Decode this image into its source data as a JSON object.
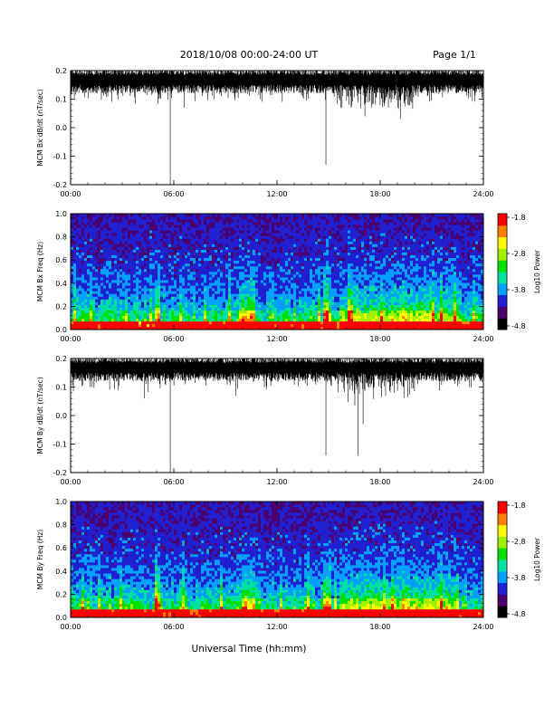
{
  "header": {
    "title": "2018/10/08   00:00-24:00 UT",
    "page": "Page 1/1"
  },
  "xlabel": "Universal Time (hh:mm)",
  "colors": {
    "trace": "#000000",
    "spectrogram_scale": [
      "#000000",
      "#4b006e",
      "#2020d0",
      "#00a0ff",
      "#00e0a0",
      "#00e000",
      "#a0f000",
      "#ffff00",
      "#ff8000",
      "#ff0000"
    ]
  },
  "chart_data": [
    {
      "type": "line",
      "ylabel": "MCM Bx dB/dt (nT/sec)",
      "xlim": [
        0,
        24
      ],
      "ylim": [
        -0.2,
        0.2
      ],
      "xtick_labels": [
        "00:00",
        "06:00",
        "12:00",
        "18:00",
        "24:00"
      ],
      "ytick_labels": [
        "0.2",
        "0.1",
        "0.0",
        "-0.1",
        "-0.2"
      ],
      "baseline": 0.17,
      "spikes": [
        {
          "x": 5.8,
          "y": -0.2
        },
        {
          "x": 14.85,
          "y": -0.13
        },
        {
          "x": 17.1,
          "y": 0.04
        },
        {
          "x": 19.2,
          "y": 0.03
        },
        {
          "x": 2.4,
          "y": 0.09
        },
        {
          "x": 6.6,
          "y": 0.07
        },
        {
          "x": 16.3,
          "y": 0.07
        }
      ],
      "grid": false
    },
    {
      "type": "heatmap",
      "ylabel": "MCM Bx Freq (Hz)",
      "xlim": [
        0,
        24
      ],
      "ylim": [
        0.0,
        1.0
      ],
      "xtick_labels": [
        "00:00",
        "06:00",
        "12:00",
        "18:00",
        "24:00"
      ],
      "ytick_labels": [
        "1.0",
        "0.8",
        "0.6",
        "0.4",
        "0.2",
        "0.0"
      ],
      "colorbar": {
        "label": "Log10 Power",
        "range": [
          -4.8,
          -1.8
        ],
        "tick_labels": [
          "-1.8",
          "-2.8",
          "-3.8",
          "-4.8"
        ]
      }
    },
    {
      "type": "line",
      "ylabel": "MCM By dB/dt (nT/sec)",
      "xlim": [
        0,
        24
      ],
      "ylim": [
        -0.2,
        0.2
      ],
      "xtick_labels": [
        "00:00",
        "06:00",
        "12:00",
        "18:00",
        "24:00"
      ],
      "ytick_labels": [
        "0.2",
        "0.1",
        "0.0",
        "-0.1",
        "-0.2"
      ],
      "baseline": 0.17,
      "spikes": [
        {
          "x": 5.8,
          "y": -0.2
        },
        {
          "x": 14.85,
          "y": -0.14
        },
        {
          "x": 16.7,
          "y": -0.14
        },
        {
          "x": 17.0,
          "y": -0.03
        },
        {
          "x": 4.3,
          "y": 0.06
        },
        {
          "x": 9.6,
          "y": 0.07
        }
      ],
      "grid": false
    },
    {
      "type": "heatmap",
      "ylabel": "MCM By Freq (Hz)",
      "xlim": [
        0,
        24
      ],
      "ylim": [
        0.0,
        1.0
      ],
      "xtick_labels": [
        "00:00",
        "06:00",
        "12:00",
        "18:00",
        "24:00"
      ],
      "ytick_labels": [
        "1.0",
        "0.8",
        "0.6",
        "0.4",
        "0.2",
        "0.0"
      ],
      "colorbar": {
        "label": "Log10 Power",
        "range": [
          -4.8,
          -1.8
        ],
        "tick_labels": [
          "-1.8",
          "-2.8",
          "-3.8",
          "-4.8"
        ]
      }
    }
  ]
}
